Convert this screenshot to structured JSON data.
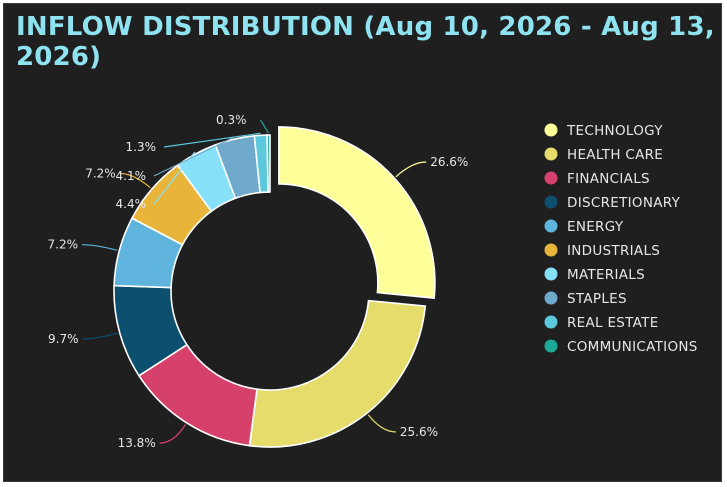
{
  "chart_data": {
    "type": "pie",
    "title": "INFLOW DISTRIBUTION (Aug 10, 2026 - Aug 13, 2026)",
    "categories": [
      "TECHNOLOGY",
      "HEALTH CARE",
      "FINANCIALS",
      "DISCRETIONARY",
      "ENERGY",
      "INDUSTRIALS",
      "MATERIALS",
      "STAPLES",
      "REAL ESTATE",
      "COMMUNICATIONS"
    ],
    "values": [
      26.6,
      25.6,
      13.8,
      9.7,
      7.2,
      7.2,
      4.4,
      4.1,
      1.3,
      0.3
    ],
    "labels": [
      "26.6%",
      "25.6%",
      "13.8%",
      "9.7%",
      "7.2%",
      "7.2%",
      "4.4%",
      "4.1%",
      "1.3%",
      "0.3%"
    ],
    "colors": [
      "#ffff99",
      "#e5dc6b",
      "#d6416b",
      "#0d4f6e",
      "#5fb4dd",
      "#e8b53a",
      "#86e0f8",
      "#6fa9cc",
      "#5bc8dc",
      "#1ea898"
    ],
    "donut": true,
    "exploded": "TECHNOLOGY",
    "legend_position": "right"
  }
}
